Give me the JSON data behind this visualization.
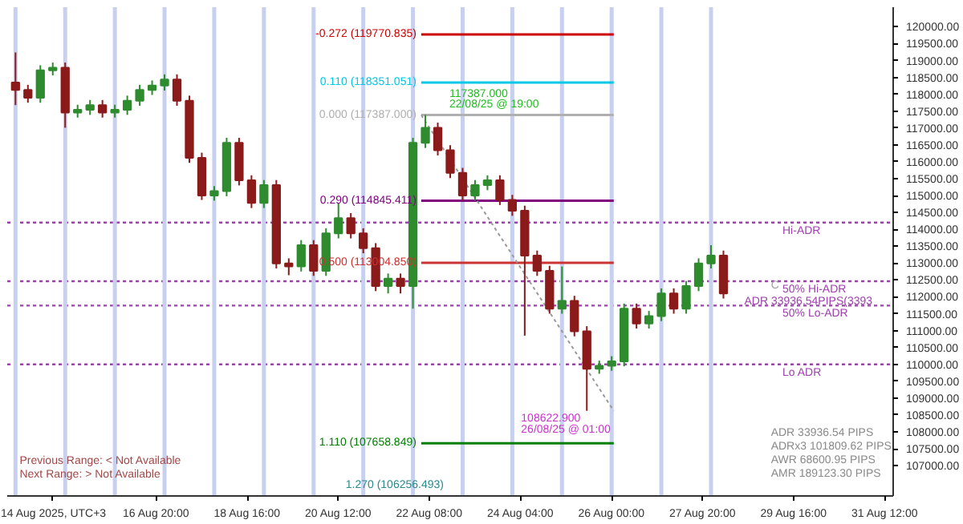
{
  "chart_data": {
    "type": "candlestick",
    "x": [
      "2025-08-14T00:00",
      "2025-08-14T06:00",
      "2025-08-14T12:00",
      "2025-08-14T18:00",
      "2025-08-15T00:00",
      "2025-08-15T06:00",
      "2025-08-15T12:00",
      "2025-08-15T18:00",
      "2025-08-16T00:00",
      "2025-08-16T06:00",
      "2025-08-16T12:00",
      "2025-08-16T18:00",
      "2025-08-17T00:00",
      "2025-08-17T06:00",
      "2025-08-17T12:00",
      "2025-08-17T18:00",
      "2025-08-18T00:00",
      "2025-08-18T06:00",
      "2025-08-18T12:00",
      "2025-08-18T18:00",
      "2025-08-19T00:00",
      "2025-08-19T06:00",
      "2025-08-19T12:00",
      "2025-08-19T18:00",
      "2025-08-20T00:00",
      "2025-08-20T06:00",
      "2025-08-20T12:00",
      "2025-08-20T18:00",
      "2025-08-21T00:00",
      "2025-08-21T06:00",
      "2025-08-21T12:00",
      "2025-08-21T18:00",
      "2025-08-22T00:00",
      "2025-08-22T06:00",
      "2025-08-22T12:00",
      "2025-08-22T18:00",
      "2025-08-23T00:00",
      "2025-08-23T06:00",
      "2025-08-23T12:00",
      "2025-08-23T18:00",
      "2025-08-24T00:00",
      "2025-08-24T06:00",
      "2025-08-24T12:00",
      "2025-08-24T18:00",
      "2025-08-25T00:00",
      "2025-08-25T06:00",
      "2025-08-25T12:00",
      "2025-08-25T18:00",
      "2025-08-26T00:00",
      "2025-08-26T06:00",
      "2025-08-26T12:00",
      "2025-08-26T18:00",
      "2025-08-27T00:00",
      "2025-08-27T06:00",
      "2025-08-27T12:00",
      "2025-08-27T18:00",
      "2025-08-28T00:00",
      "2025-08-28T06:00"
    ],
    "ohlc": [
      [
        118350,
        119240,
        117680,
        118130
      ],
      [
        118130,
        118280,
        117750,
        117900
      ],
      [
        117900,
        118860,
        117750,
        118710
      ],
      [
        118710,
        118940,
        118560,
        118790
      ],
      [
        118790,
        118940,
        117010,
        117460
      ],
      [
        117460,
        117690,
        117310,
        117540
      ],
      [
        117540,
        117830,
        117390,
        117680
      ],
      [
        117680,
        117830,
        117310,
        117460
      ],
      [
        117460,
        117690,
        117310,
        117540
      ],
      [
        117540,
        117960,
        117390,
        117810
      ],
      [
        117810,
        118280,
        117660,
        118130
      ],
      [
        118130,
        118410,
        117980,
        118260
      ],
      [
        118260,
        118590,
        118110,
        118440
      ],
      [
        118440,
        118590,
        117660,
        117810
      ],
      [
        117810,
        117960,
        115970,
        116120
      ],
      [
        116120,
        116270,
        114870,
        115000
      ],
      [
        115000,
        115280,
        114850,
        115130
      ],
      [
        115130,
        116710,
        114980,
        116560
      ],
      [
        116560,
        116710,
        115300,
        115450
      ],
      [
        115450,
        115600,
        114630,
        114780
      ],
      [
        114780,
        115460,
        114630,
        115310
      ],
      [
        115310,
        115460,
        112840,
        112990
      ],
      [
        112990,
        113140,
        112640,
        112900
      ],
      [
        112900,
        113680,
        112750,
        113530
      ],
      [
        113530,
        113680,
        112620,
        112770
      ],
      [
        112770,
        114030,
        112620,
        113880
      ],
      [
        113880,
        114780,
        113730,
        114330
      ],
      [
        114330,
        114480,
        113730,
        113880
      ],
      [
        113880,
        114030,
        113290,
        113440
      ],
      [
        113440,
        113590,
        112170,
        112320
      ],
      [
        112320,
        112690,
        112100,
        112540
      ],
      [
        112540,
        112690,
        112100,
        112320
      ],
      [
        112320,
        116710,
        111650,
        116560
      ],
      [
        116560,
        117387,
        116410,
        117010
      ],
      [
        117010,
        117160,
        116190,
        116340
      ],
      [
        116340,
        116490,
        115520,
        115670
      ],
      [
        115670,
        115820,
        114850,
        115000
      ],
      [
        115000,
        115460,
        114850,
        115310
      ],
      [
        115310,
        115600,
        115160,
        115450
      ],
      [
        115450,
        115600,
        114720,
        114870
      ],
      [
        114870,
        115020,
        114400,
        114550
      ],
      [
        114550,
        114700,
        110850,
        113220
      ],
      [
        113220,
        113370,
        112620,
        112770
      ],
      [
        112770,
        112920,
        111500,
        111650
      ],
      [
        111650,
        112900,
        111500,
        111880
      ],
      [
        111880,
        112030,
        110830,
        110980
      ],
      [
        110980,
        111130,
        108622.9,
        109870
      ],
      [
        109870,
        110110,
        109720,
        109960
      ],
      [
        109960,
        110240,
        109810,
        110090
      ],
      [
        110090,
        111800,
        109940,
        111650
      ],
      [
        111650,
        111800,
        111060,
        111210
      ],
      [
        111210,
        111580,
        111060,
        111430
      ],
      [
        111430,
        112250,
        111280,
        112100
      ],
      [
        112100,
        112250,
        111500,
        111650
      ],
      [
        111650,
        112470,
        111500,
        112320
      ],
      [
        112320,
        113140,
        112170,
        112990
      ],
      [
        112990,
        113530,
        112840,
        113220
      ],
      [
        113220,
        113370,
        111950,
        112100
      ]
    ],
    "colors": [
      "#8b1a1a",
      "#8b1a1a",
      "#2e8b2e",
      "#2e8b2e",
      "#8b1a1a",
      "#2e8b2e",
      "#2e8b2e",
      "#8b1a1a",
      "#2e8b2e",
      "#2e8b2e",
      "#2e8b2e",
      "#2e8b2e",
      "#2e8b2e",
      "#8b1a1a",
      "#8b1a1a",
      "#8b1a1a",
      "#2e8b2e",
      "#2e8b2e",
      "#8b1a1a",
      "#8b1a1a",
      "#2e8b2e",
      "#8b1a1a",
      "#8b1a1a",
      "#2e8b2e",
      "#8b1a1a",
      "#2e8b2e",
      "#2e8b2e",
      "#8b1a1a",
      "#8b1a1a",
      "#8b1a1a",
      "#2e8b2e",
      "#8b1a1a",
      "#2e8b2e",
      "#2e8b2e",
      "#8b1a1a",
      "#8b1a1a",
      "#8b1a1a",
      "#2e8b2e",
      "#2e8b2e",
      "#8b1a1a",
      "#8b1a1a",
      "#8b1a1a",
      "#8b1a1a",
      "#8b1a1a",
      "#2e8b2e",
      "#8b1a1a",
      "#8b1a1a",
      "#2e8b2e",
      "#2e8b2e",
      "#2e8b2e",
      "#8b1a1a",
      "#2e8b2e",
      "#2e8b2e",
      "#8b1a1a",
      "#2e8b2e",
      "#2e8b2e",
      "#2e8b2e",
      "#8b1a1a"
    ],
    "series": [
      {
        "type": "line",
        "name": "-0.272 (119770.835)",
        "color": "#cc0000",
        "x": [
          "2025-08-22T04:00",
          "2025-08-26T01:00"
        ],
        "values": [
          119770.835,
          119770.835
        ]
      },
      {
        "type": "line",
        "name": "0.110 (118351.051)",
        "color": "#00c8e6",
        "x": [
          "2025-08-22T04:00",
          "2025-08-26T01:00"
        ],
        "values": [
          118351.051,
          118351.051
        ]
      },
      {
        "type": "line",
        "name": "0.000 (117387.000)",
        "color": "#b0b0b0",
        "x": [
          "2025-08-22T04:00",
          "2025-08-26T01:00"
        ],
        "values": [
          117387.0,
          117387.0
        ]
      },
      {
        "type": "line",
        "name": "0.290 (114845.411)",
        "color": "#800080",
        "x": [
          "2025-08-22T04:00",
          "2025-08-26T01:00"
        ],
        "values": [
          114845.411,
          114845.411
        ]
      },
      {
        "type": "line",
        "name": "0.500 (113004.850)",
        "color": "#cc3333",
        "x": [
          "2025-08-22T04:00",
          "2025-08-26T01:00"
        ],
        "values": [
          113004.85,
          113004.85
        ]
      },
      {
        "type": "line",
        "name": "1.110 (107658.849)",
        "color": "#008000",
        "x": [
          "2025-08-22T04:00",
          "2025-08-26T01:00"
        ],
        "values": [
          107658.849,
          107658.849
        ]
      },
      {
        "type": "line",
        "color": "#999999",
        "line_style": "dotted",
        "x": [
          "2025-08-22T04:00",
          "2025-08-26T01:00"
        ],
        "values": [
          117387.0,
          108622.9
        ]
      }
    ],
    "ref_lines": [
      {
        "axis": "y",
        "value": 114200,
        "label": "Hi-ADR",
        "color": "#a040b0",
        "line_style": "dotted"
      },
      {
        "axis": "y",
        "value": 112460,
        "label": "50% Hi-ADR",
        "color": "#a040b0",
        "line_style": "dotted"
      },
      {
        "axis": "y",
        "value": 111740,
        "label": "50% Lo-ADR",
        "color": "#a040b0",
        "line_style": "dotted"
      },
      {
        "axis": "y",
        "value": 110000,
        "label": "Lo ADR",
        "color": "#a040b0",
        "line_style": "dotted"
      },
      {
        "axis": "x",
        "value": "2025-08-14T00:00",
        "color": "#c8d0f0"
      },
      {
        "axis": "x",
        "value": "2025-08-15T00:00",
        "color": "#c8d0f0"
      },
      {
        "axis": "x",
        "value": "2025-08-16T00:00",
        "color": "#c8d0f0"
      },
      {
        "axis": "x",
        "value": "2025-08-17T00:00",
        "color": "#c8d0f0"
      },
      {
        "axis": "x",
        "value": "2025-08-18T00:00",
        "color": "#c8d0f0"
      },
      {
        "axis": "x",
        "value": "2025-08-19T00:00",
        "color": "#c8d0f0"
      },
      {
        "axis": "x",
        "value": "2025-08-20T00:00",
        "color": "#c8d0f0"
      },
      {
        "axis": "x",
        "value": "2025-08-21T00:00",
        "color": "#c8d0f0"
      },
      {
        "axis": "x",
        "value": "2025-08-22T00:00",
        "color": "#c8d0f0"
      },
      {
        "axis": "x",
        "value": "2025-08-23T00:00",
        "color": "#c8d0f0"
      },
      {
        "axis": "x",
        "value": "2025-08-24T00:00",
        "color": "#c8d0f0"
      },
      {
        "axis": "x",
        "value": "2025-08-25T00:00",
        "color": "#c8d0f0"
      },
      {
        "axis": "x",
        "value": "2025-08-26T00:00",
        "color": "#c8d0f0"
      },
      {
        "axis": "x",
        "value": "2025-08-27T00:00",
        "color": "#c8d0f0"
      },
      {
        "axis": "x",
        "value": "2025-08-28T00:00",
        "color": "#c8d0f0"
      }
    ],
    "annotations": [
      "117387.000",
      "22/08/25 @ 19:00",
      "ADR 33936.54PIPS(3393",
      "C",
      "108622.900",
      "26/08/25 @ 01:00",
      "1.270 (106256.493)",
      "Previous Range: < Not Available",
      "Next Range: > Not Available",
      "ADR 33936.54 PIPS",
      "ADRx3 101809.62 PIPS",
      "AWR 68600.95 PIPS",
      "AMR 189123.30 PIPS"
    ],
    "xlim": [
      "2025-08-13T20:00",
      "2025-08-31T16:00"
    ],
    "xticks": [
      {
        "value": "2025-08-14T18:00",
        "label": "14 Aug 2025, UTC+3"
      },
      {
        "value": "2025-08-16T20:00",
        "label": "16 Aug 20:00"
      },
      {
        "value": "2025-08-18T16:00",
        "label": "18 Aug 16:00"
      },
      {
        "value": "2025-08-20T12:00",
        "label": "20 Aug 12:00"
      },
      {
        "value": "2025-08-22T08:00",
        "label": "22 Aug 08:00"
      },
      {
        "value": "2025-08-24T04:00",
        "label": "24 Aug 04:00"
      },
      {
        "value": "2025-08-26T00:00",
        "label": "26 Aug 00:00"
      },
      {
        "value": "2025-08-27T20:00",
        "label": "27 Aug 20:00"
      },
      {
        "value": "2025-08-29T16:00",
        "label": "29 Aug 16:00"
      },
      {
        "value": "2025-08-31T12:00",
        "label": "31 Aug 12:00"
      }
    ],
    "ylim": [
      106100,
      120580
    ],
    "yticks": [
      {
        "value": 107000,
        "label": "107000.00"
      },
      {
        "value": 107500,
        "label": "107500.00"
      },
      {
        "value": 108000,
        "label": "108000.00"
      },
      {
        "value": 108500,
        "label": "108500.00"
      },
      {
        "value": 109000,
        "label": "109000.00"
      },
      {
        "value": 109500,
        "label": "109500.00"
      },
      {
        "value": 110000,
        "label": "110000.00"
      },
      {
        "value": 110500,
        "label": "110500.00"
      },
      {
        "value": 111000,
        "label": "111000.00"
      },
      {
        "value": 111500,
        "label": "111500.00"
      },
      {
        "value": 112000,
        "label": "112000.00"
      },
      {
        "value": 112500,
        "label": "112500.00"
      },
      {
        "value": 113000,
        "label": "113000.00"
      },
      {
        "value": 113500,
        "label": "113500.00"
      },
      {
        "value": 114000,
        "label": "114000.00"
      },
      {
        "value": 114500,
        "label": "114500.00"
      },
      {
        "value": 115000,
        "label": "115000.00"
      },
      {
        "value": 115500,
        "label": "115500.00"
      },
      {
        "value": 116000,
        "label": "116000.00"
      },
      {
        "value": 116500,
        "label": "116500.00"
      },
      {
        "value": 117000,
        "label": "117000.00"
      },
      {
        "value": 117500,
        "label": "117500.00"
      },
      {
        "value": 118000,
        "label": "118000.00"
      },
      {
        "value": 118500,
        "label": "118500.00"
      },
      {
        "value": 119000,
        "label": "119000.00"
      },
      {
        "value": 119500,
        "label": "119500.00"
      },
      {
        "value": 120000,
        "label": "120000.00"
      }
    ],
    "grid": false
  }
}
